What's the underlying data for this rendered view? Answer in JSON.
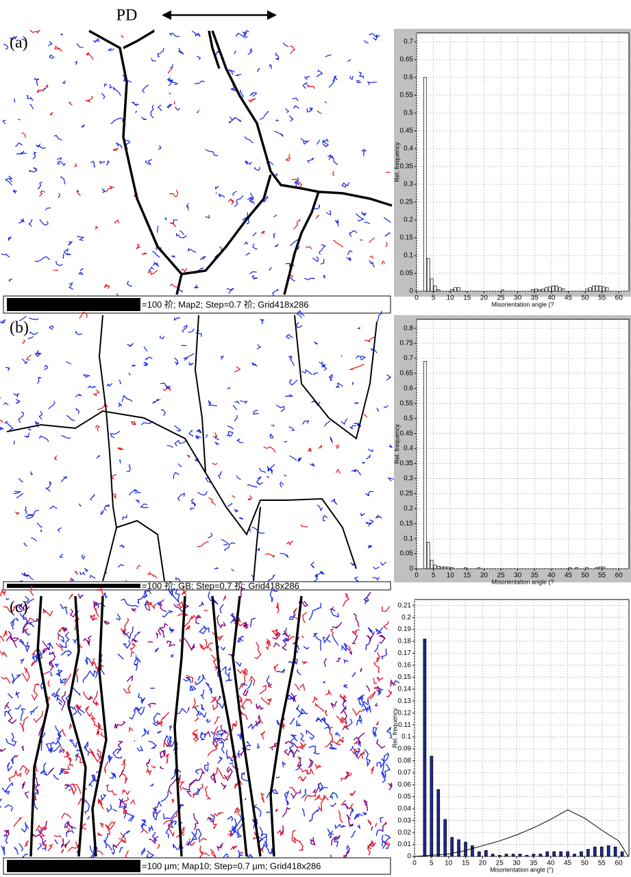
{
  "figure": {
    "pd_label": "PD",
    "panels": [
      {
        "label": "(a)",
        "caption": "=100 祄; Map2; Step=0.7 祄; Grid418x286"
      },
      {
        "label": "(b)",
        "caption": "=100 祄; GB; Step=0.7 祄; Grid418x286"
      },
      {
        "label": "(c)",
        "caption": "=100 µm; Map10; Step=0.7 µm; Grid418x286"
      }
    ]
  },
  "chart_data": [
    {
      "type": "bar",
      "xlabel": "Misorientation angle (?",
      "ylabel": "Rel. frequency",
      "color": "#ffffff",
      "grid": true,
      "x": [
        2.5,
        3.5,
        4.5,
        5.5,
        6.5,
        10.5,
        11.5,
        12.5,
        25.5,
        34.5,
        35.5,
        36.5,
        37.5,
        38.5,
        39.5,
        40.5,
        41.5,
        42.5,
        43.5,
        50.5,
        51.5,
        52.5,
        53.5,
        54.5,
        55.5,
        56.5
      ],
      "values": [
        0.6,
        0.092,
        0.035,
        0.015,
        0.005,
        0.005,
        0.01,
        0.01,
        0.004,
        0.005,
        0.006,
        0.004,
        0.006,
        0.01,
        0.012,
        0.015,
        0.015,
        0.01,
        0.007,
        0.006,
        0.01,
        0.015,
        0.015,
        0.015,
        0.012,
        0.01
      ],
      "xlim": [
        0,
        63
      ],
      "ylim": [
        0,
        0.725
      ],
      "xticks": [
        0,
        5,
        10,
        15,
        20,
        25,
        30,
        35,
        40,
        45,
        50,
        55,
        60
      ],
      "yticks": [
        0,
        0.05,
        0.1,
        0.15,
        0.2,
        0.25,
        0.3,
        0.35,
        0.4,
        0.45,
        0.5,
        0.55,
        0.6,
        0.65,
        0.7
      ]
    },
    {
      "type": "bar",
      "xlabel": "Misorientation angle (?",
      "ylabel": "Rel. frequency",
      "color": "#ffffff",
      "grid": true,
      "x": [
        2.5,
        3.5,
        4.5,
        5.5,
        6.5,
        7.5,
        8.5,
        9.5,
        10.5,
        14.5,
        18.5,
        45.5,
        47.5,
        50.5,
        53.5,
        54.5,
        55.5
      ],
      "values": [
        0.69,
        0.088,
        0.028,
        0.012,
        0.008,
        0.006,
        0.006,
        0.005,
        0.004,
        0.003,
        0.003,
        0.003,
        0.004,
        0.004,
        0.004,
        0.006,
        0.005
      ],
      "xlim": [
        0,
        63
      ],
      "ylim": [
        0,
        0.83
      ],
      "xticks": [
        0,
        5,
        10,
        15,
        20,
        25,
        30,
        35,
        40,
        45,
        50,
        55,
        60
      ],
      "yticks": [
        0,
        0.05,
        0.1,
        0.15,
        0.2,
        0.25,
        0.3,
        0.35,
        0.4,
        0.45,
        0.5,
        0.55,
        0.6,
        0.65,
        0.7,
        0.75,
        0.8
      ]
    },
    {
      "type": "bar",
      "xlabel": "Misorientation angle (°)",
      "ylabel": "Rel. frequency",
      "color": "#1c2a8c",
      "grid": true,
      "x": [
        3,
        5,
        7,
        9,
        11,
        13,
        15,
        17,
        19,
        21,
        23,
        25,
        27,
        29,
        31,
        33,
        35,
        37,
        39,
        41,
        43,
        45,
        47,
        49,
        51,
        53,
        55,
        57,
        59,
        61
      ],
      "values": [
        0.182,
        0.084,
        0.056,
        0.031,
        0.016,
        0.014,
        0.012,
        0.009,
        0.004,
        0.005,
        0.002,
        0.001,
        0.002,
        0.002,
        0.002,
        0.001,
        0.002,
        0.002,
        0.004,
        0.004,
        0.004,
        0.004,
        0.002,
        0.004,
        0.006,
        0.008,
        0.008,
        0.009,
        0.008,
        0.004
      ],
      "curve": {
        "color": "#000000",
        "x": [
          0,
          10,
          15,
          20,
          25,
          30,
          35,
          40,
          45,
          50,
          55,
          60,
          62.8
        ],
        "values": [
          0,
          0.002,
          0.005,
          0.009,
          0.013,
          0.018,
          0.024,
          0.031,
          0.039,
          0.032,
          0.022,
          0.013,
          0
        ]
      },
      "xlim": [
        0,
        63
      ],
      "ylim": [
        0,
        0.215
      ],
      "xticks": [
        0,
        5,
        10,
        15,
        20,
        25,
        30,
        35,
        40,
        45,
        50,
        55,
        60
      ],
      "yticks": [
        0,
        0.01,
        0.02,
        0.03,
        0.04,
        0.05,
        0.06,
        0.07,
        0.08,
        0.09,
        0.1,
        0.11,
        0.12,
        0.13,
        0.14,
        0.15,
        0.16,
        0.17,
        0.18,
        0.19,
        0.2,
        0.21
      ]
    }
  ]
}
